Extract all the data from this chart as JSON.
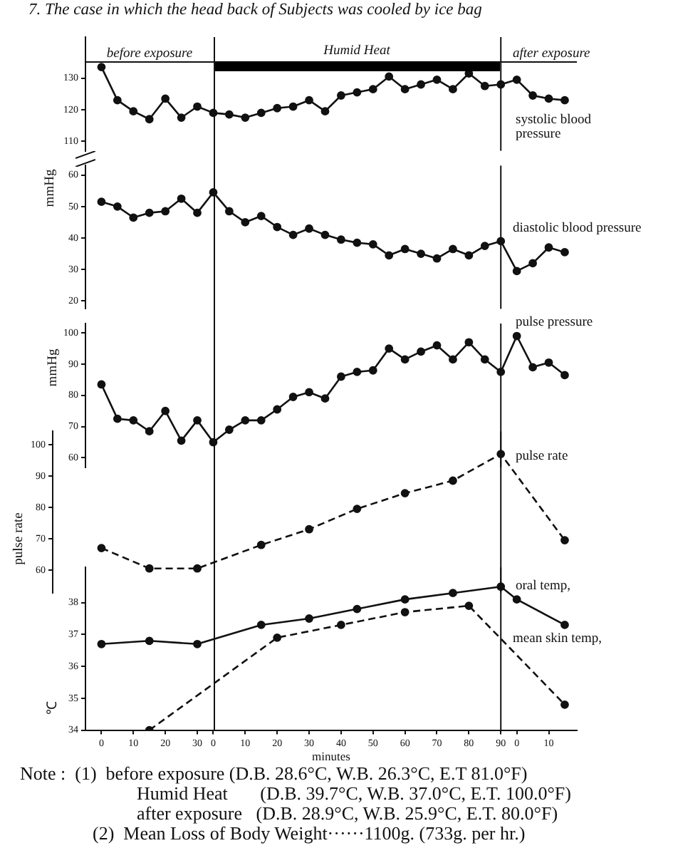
{
  "chart_data": [
    {
      "type": "line",
      "title": "7.  The case in which the head back of Subjects was cooled by ice bag",
      "categories": [
        "0",
        null,
        "10",
        null,
        "20",
        null,
        "30",
        "0",
        null,
        "10",
        null,
        "20",
        null,
        "30",
        null,
        "40",
        null,
        "50",
        null,
        "60",
        null,
        "70",
        null,
        "80",
        null,
        "90",
        "0",
        null,
        "10",
        null
      ],
      "series": [
        {
          "name": "systolic blood pressure",
          "color": "#111111",
          "values": [
            133.5,
            123,
            119.5,
            117,
            123.5,
            117.5,
            121,
            119,
            118.5,
            117.5,
            119,
            120.5,
            121,
            123,
            119.5,
            124.5,
            125.5,
            126.5,
            130.5,
            126.5,
            128,
            129.5,
            126.5,
            131.5,
            127.5,
            128,
            129.5,
            124.5,
            123.5,
            123
          ]
        }
      ],
      "ylim": [
        107,
        143
      ],
      "yticks": [
        110,
        120,
        130
      ],
      "tick_labels": "y",
      "marker": "circle",
      "line_style": "solid",
      "ref_lines": [
        {
          "axis": "x",
          "value": "90"
        }
      ],
      "annotations": [
        "before exposure",
        "Humid Heat",
        "after exposure"
      ]
    },
    {
      "type": "line",
      "ylabel": "mmHg",
      "categories": [
        "0",
        null,
        "10",
        null,
        "20",
        null,
        "30",
        "0",
        null,
        "10",
        null,
        "20",
        null,
        "30",
        null,
        "40",
        null,
        "50",
        null,
        "60",
        null,
        "70",
        null,
        "80",
        null,
        "90",
        "0",
        null,
        "10",
        null
      ],
      "series": [
        {
          "name": "diastolic blood pressure",
          "color": "#111111",
          "values": [
            51.5,
            50,
            46.5,
            48,
            48.5,
            52.5,
            48,
            54.5,
            48.5,
            45,
            47,
            43.5,
            41,
            43,
            41,
            39.5,
            38.5,
            38,
            34.5,
            36.5,
            35,
            33.5,
            36.5,
            34.5,
            37.5,
            39,
            29.5,
            32,
            37,
            35.5
          ]
        }
      ],
      "ylim": [
        17.5,
        63
      ],
      "yticks": [
        20,
        30,
        40,
        50,
        60
      ],
      "tick_labels": "y",
      "marker": "circle",
      "line_style": "solid",
      "ref_lines": [
        {
          "axis": "x",
          "value": "90"
        }
      ]
    },
    {
      "type": "line",
      "ylabel": "mmHg",
      "categories": [
        "0",
        null,
        "10",
        null,
        "20",
        null,
        "30",
        "0",
        null,
        "10",
        null,
        "20",
        null,
        "30",
        null,
        "40",
        null,
        "50",
        null,
        "60",
        null,
        "70",
        null,
        "80",
        null,
        "90",
        "0",
        null,
        "10",
        null
      ],
      "series": [
        {
          "name": "pulse pressure",
          "color": "#111111",
          "values": [
            83.5,
            72.5,
            72,
            68.5,
            75,
            65.5,
            72,
            65,
            69,
            72,
            72,
            75.5,
            79.5,
            81,
            79,
            86,
            87.5,
            88,
            95,
            91.5,
            94,
            96,
            91.5,
            97,
            91.5,
            87.5,
            99,
            89,
            90.5,
            86.5
          ]
        }
      ],
      "ylim": [
        57,
        103
      ],
      "yticks": [
        60,
        70,
        80,
        90,
        100
      ],
      "tick_labels": "y",
      "marker": "circle",
      "line_style": "solid",
      "ref_lines": [
        {
          "axis": "x",
          "value": "90"
        }
      ]
    },
    {
      "type": "line",
      "ylabel": "pulse rate",
      "categories": [
        "0",
        null,
        "10",
        null,
        "20",
        null,
        "30",
        "0",
        null,
        "10",
        null,
        "20",
        null,
        "30",
        null,
        "40",
        null,
        "50",
        null,
        "60",
        null,
        "70",
        null,
        "80",
        null,
        "90",
        "0",
        null,
        "10",
        null
      ],
      "series": [
        {
          "name": "pulse rate",
          "color": "#111111",
          "values": [
            67,
            null,
            null,
            60.5,
            null,
            null,
            60.5,
            null,
            null,
            null,
            68,
            null,
            null,
            73,
            null,
            null,
            79.5,
            null,
            null,
            84.5,
            null,
            null,
            88.5,
            null,
            null,
            97,
            null,
            null,
            null,
            69.5
          ]
        }
      ],
      "ylim": [
        52.8,
        104.2
      ],
      "yticks": [
        60,
        70,
        80,
        90,
        100
      ],
      "tick_labels": "y",
      "marker": "circle",
      "line_style": "dashed",
      "ref_lines": [
        {
          "axis": "x",
          "value": "90"
        }
      ]
    },
    {
      "type": "line",
      "xlabel": "minutes",
      "ylabel": "℃",
      "categories": [
        "0",
        null,
        "10",
        null,
        "20",
        null,
        "30",
        "0",
        null,
        "10",
        null,
        "20",
        null,
        "30",
        null,
        "40",
        null,
        "50",
        null,
        "60",
        null,
        "70",
        null,
        "80",
        null,
        "90",
        "0",
        null,
        "10",
        null
      ],
      "series": [
        {
          "name": "oral temp,",
          "color": "#111111",
          "line_style": "solid",
          "values": [
            36.7,
            null,
            null,
            36.8,
            null,
            null,
            36.7,
            null,
            null,
            null,
            37.3,
            null,
            null,
            37.5,
            null,
            null,
            37.8,
            null,
            null,
            38.1,
            null,
            null,
            38.3,
            null,
            null,
            38.5,
            38.1,
            null,
            null,
            37.3
          ]
        },
        {
          "name": "mean skin temp,",
          "color": "#111111",
          "line_style": "dashed",
          "values": [
            null,
            null,
            null,
            34.0,
            null,
            null,
            null,
            null,
            null,
            null,
            null,
            36.9,
            null,
            null,
            null,
            37.3,
            null,
            null,
            null,
            37.7,
            null,
            null,
            null,
            37.9,
            null,
            null,
            null,
            null,
            null,
            34.8
          ]
        }
      ],
      "ylim": [
        34,
        39.1
      ],
      "yticks": [
        34,
        35,
        36,
        37,
        38
      ],
      "marker": "circle",
      "ref_lines": [
        {
          "axis": "x",
          "value": "90"
        }
      ],
      "annotations": [
        "Note :  (1)  before exposure (D.B. 28.6°C, W.B. 26.3°C, E.T 81.0°F)",
        "Humid Heat       (D.B. 39.7°C, W.B. 37.0°C, E.T. 100.0°F)",
        "after exposure   (D.B. 28.9°C, W.B. 25.9°C, E.T. 80.0°F)",
        "(2)  Mean Loss of Body Weight······1100g. (733g. per hr.)"
      ]
    }
  ]
}
